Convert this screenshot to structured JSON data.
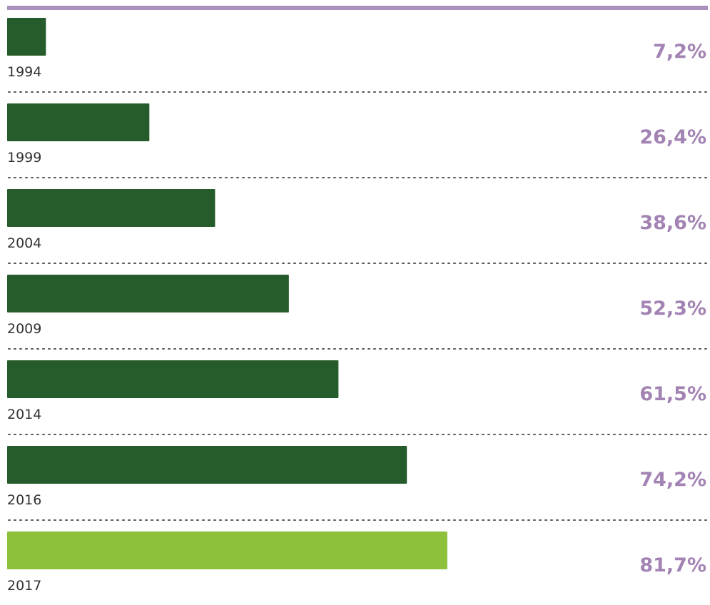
{
  "chart_data": {
    "type": "bar",
    "orientation": "horizontal",
    "categories": [
      "1994",
      "1999",
      "2004",
      "2009",
      "2014",
      "2016",
      "2017"
    ],
    "values": [
      7.2,
      26.4,
      38.6,
      52.3,
      61.5,
      74.2,
      81.7
    ],
    "value_labels": [
      "7,2%",
      "26,4%",
      "38,6%",
      "52,3%",
      "61,5%",
      "74,2%",
      "81,7%"
    ],
    "colors": [
      "#265c2b",
      "#265c2b",
      "#265c2b",
      "#265c2b",
      "#265c2b",
      "#265c2b",
      "#8dc03b"
    ]
  }
}
